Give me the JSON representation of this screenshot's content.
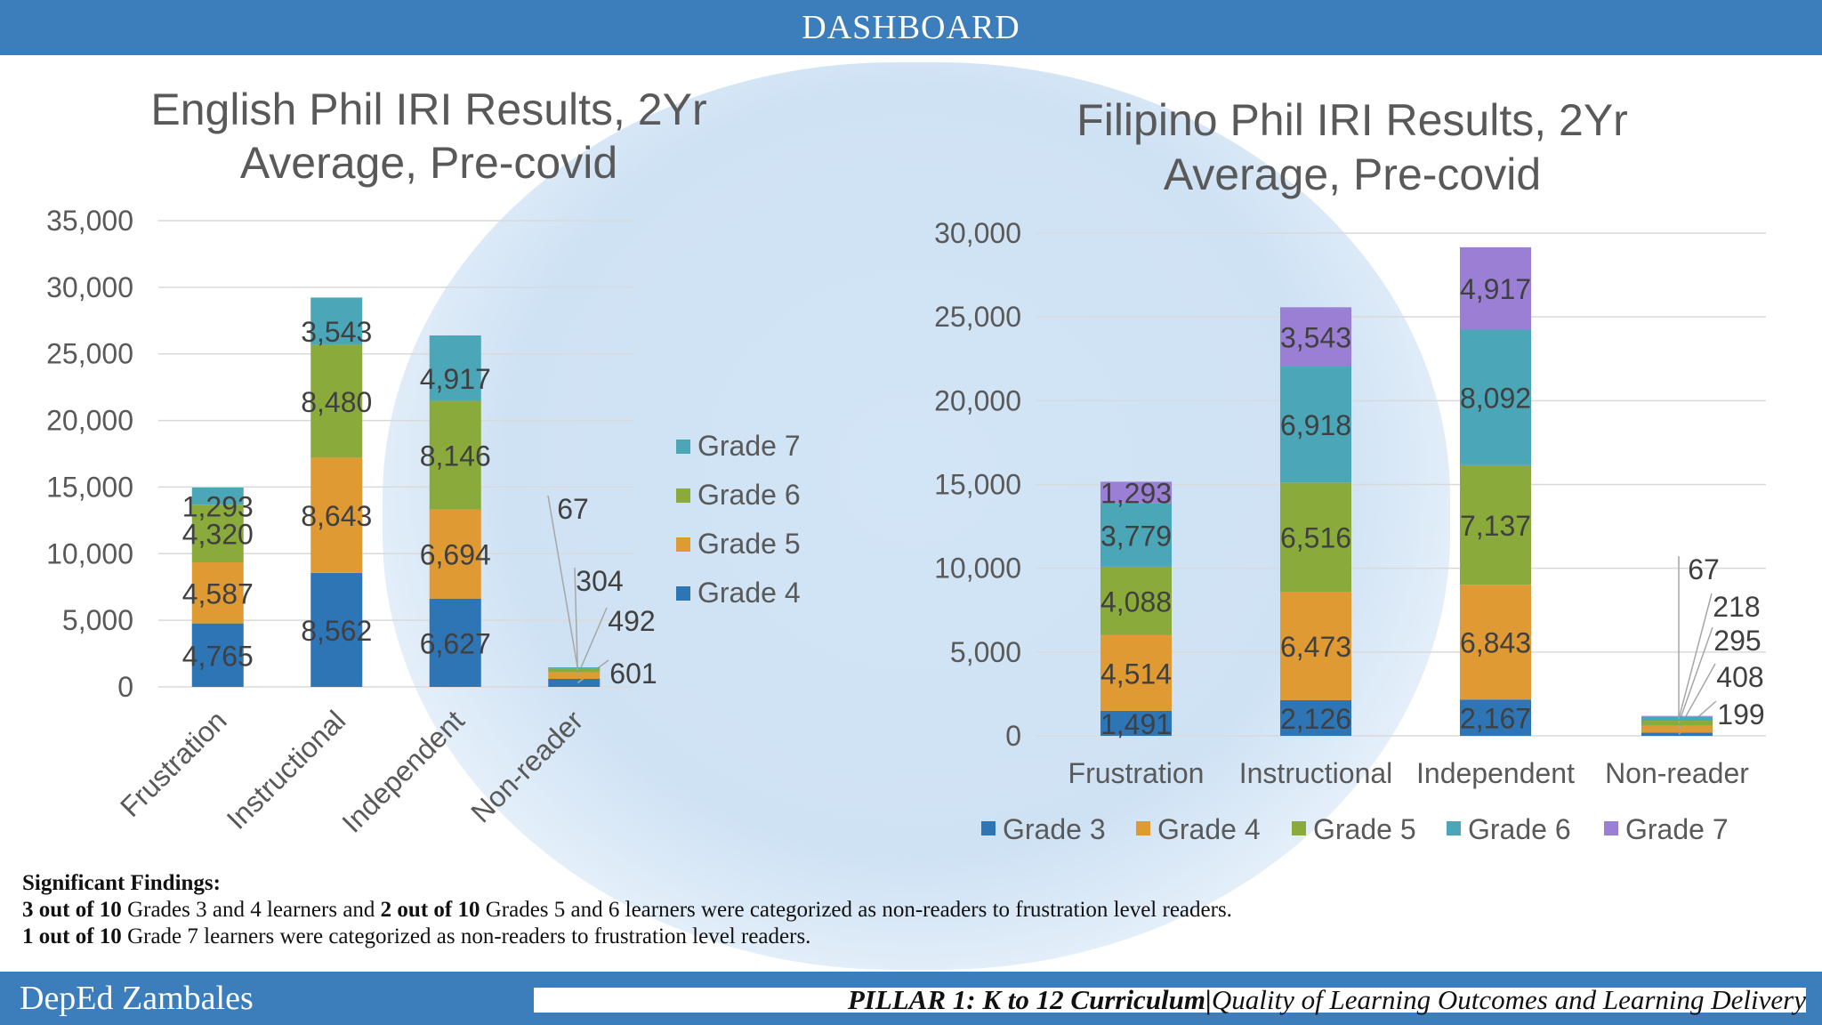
{
  "header": {
    "title": "DASHBOARD"
  },
  "colors": {
    "grade3": "#2e75b6",
    "grade4": "#2e75b6",
    "grade5": "#e09a33",
    "grade6": "#8aab3c",
    "grade7": "#4ba6b8",
    "grade7_purple": "#9b7fd4",
    "bar_frame": "#3c7dbb"
  },
  "chart_data": [
    {
      "type": "bar",
      "stacked": true,
      "title": "English Phil IRI Results, 2Yr Average, Pre-covid",
      "title_lines": [
        "English Phil IRI Results, 2Yr",
        "Average, Pre-covid"
      ],
      "categories": [
        "Frustration",
        "Instructional",
        "Independent",
        "Non-reader"
      ],
      "ylim": [
        0,
        35000
      ],
      "yticks": [
        "0",
        "5,000",
        "10,000",
        "15,000",
        "20,000",
        "25,000",
        "30,000",
        "35,000"
      ],
      "legend_position": "right",
      "series": [
        {
          "name": "Grade 4",
          "values": [
            4765,
            8562,
            6627,
            601
          ],
          "labels": [
            "4,765",
            "8,562",
            "6,627",
            "601"
          ]
        },
        {
          "name": "Grade 5",
          "values": [
            4587,
            8643,
            6694,
            492
          ],
          "labels": [
            "4,587",
            "8,643",
            "6,694",
            "492"
          ]
        },
        {
          "name": "Grade 6",
          "values": [
            4320,
            8480,
            8146,
            304
          ],
          "labels": [
            "4,320",
            "8,480",
            "8,146",
            "304"
          ]
        },
        {
          "name": "Grade 7",
          "values": [
            1293,
            3543,
            4917,
            67
          ],
          "labels": [
            "1,293",
            "3,543",
            "4,917",
            "67"
          ]
        }
      ]
    },
    {
      "type": "bar",
      "stacked": true,
      "title": "Filipino Phil IRI Results, 2Yr Average, Pre-covid",
      "title_lines": [
        "Filipino Phil IRI Results, 2Yr",
        "Average, Pre-covid"
      ],
      "categories": [
        "Frustration",
        "Instructional",
        "Independent",
        "Non-reader"
      ],
      "ylim": [
        0,
        30000
      ],
      "yticks": [
        "0",
        "5,000",
        "10,000",
        "15,000",
        "20,000",
        "25,000",
        "30,000"
      ],
      "legend_position": "bottom",
      "series": [
        {
          "name": "Grade 3",
          "values": [
            1491,
            2126,
            2167,
            199
          ],
          "labels": [
            "1,491",
            "2,126",
            "2,167",
            "199"
          ]
        },
        {
          "name": "Grade 4",
          "values": [
            4514,
            6473,
            6843,
            408
          ],
          "labels": [
            "4,514",
            "6,473",
            "6,843",
            "408"
          ]
        },
        {
          "name": "Grade 5",
          "values": [
            4088,
            6516,
            7137,
            295
          ],
          "labels": [
            "4,088",
            "6,516",
            "7,137",
            "295"
          ]
        },
        {
          "name": "Grade 6",
          "values": [
            3779,
            6918,
            8092,
            218
          ],
          "labels": [
            "3,779",
            "6,918",
            "8,092",
            "218"
          ]
        },
        {
          "name": "Grade 7",
          "values": [
            1293,
            3543,
            4917,
            67
          ],
          "labels": [
            "1,293",
            "3,543",
            "4,917",
            "67"
          ]
        }
      ]
    }
  ],
  "findings": {
    "heading": "Significant Findings:",
    "line1_a": "3 out of 10",
    "line1_b": " Grades 3 and 4 learners and ",
    "line1_c": "2 out of 10",
    "line1_d": " Grades 5 and 6 learners were categorized as non-readers to frustration level readers.",
    "line2_a": "1 out of 10",
    "line2_b": " Grade 7 learners were categorized as non-readers to frustration level readers."
  },
  "footer": {
    "brand": "DepEd Zambales",
    "pillar_strong": "PILLAR 1: K to 12 Curriculum",
    "pillar_sep": "|",
    "pillar_rest": "Quality of Learning Outcomes and Learning Delivery"
  }
}
